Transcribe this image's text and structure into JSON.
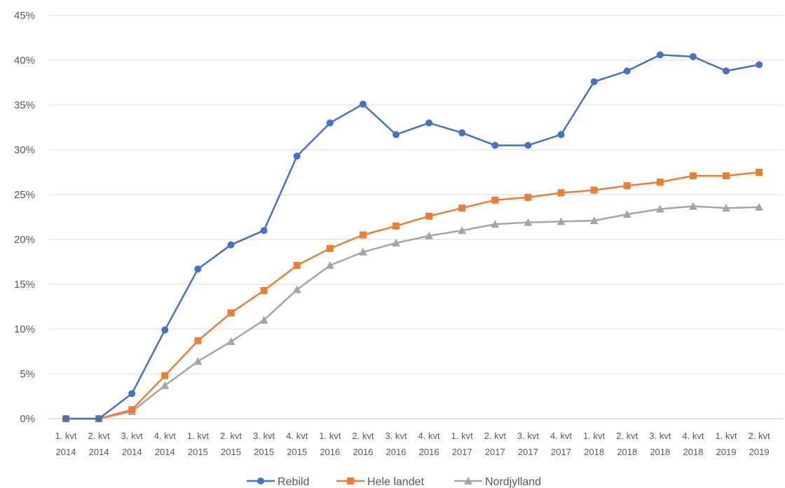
{
  "chart_data": {
    "type": "line",
    "title": "",
    "xlabel": "",
    "ylabel": "",
    "ylim": [
      0,
      45
    ],
    "y_ticks": [
      "0%",
      "5%",
      "10%",
      "15%",
      "20%",
      "25%",
      "30%",
      "35%",
      "40%",
      "45%"
    ],
    "grid": "horizontal",
    "legend_position": "bottom",
    "categories": [
      [
        "1. kvt",
        "2014"
      ],
      [
        "2. kvt",
        "2014"
      ],
      [
        "3. kvt",
        "2014"
      ],
      [
        "4. kvt",
        "2014"
      ],
      [
        "1. kvt",
        "2015"
      ],
      [
        "2. kvt",
        "2015"
      ],
      [
        "3. kvt",
        "2015"
      ],
      [
        "4. kvt",
        "2015"
      ],
      [
        "1. kvt",
        "2016"
      ],
      [
        "2. kvt",
        "2016"
      ],
      [
        "3. kvt",
        "2016"
      ],
      [
        "4. kvt",
        "2016"
      ],
      [
        "1. kvt",
        "2017"
      ],
      [
        "2. kvt",
        "2017"
      ],
      [
        "3. kvt",
        "2017"
      ],
      [
        "4. kvt",
        "2017"
      ],
      [
        "1. kvt",
        "2018"
      ],
      [
        "2. kvt",
        "2018"
      ],
      [
        "3. kvt",
        "2018"
      ],
      [
        "4. kvt",
        "2018"
      ],
      [
        "1. kvt",
        "2019"
      ],
      [
        "2. kvt",
        "2019"
      ]
    ],
    "series": [
      {
        "name": "Rebild",
        "color": "#4472c4",
        "marker": "circle",
        "values": [
          0,
          0,
          2.8,
          9.9,
          16.7,
          19.4,
          21.0,
          29.3,
          33.0,
          35.1,
          31.7,
          33.0,
          31.9,
          30.5,
          30.5,
          31.7,
          37.6,
          38.8,
          40.6,
          40.4,
          38.8,
          39.5
        ]
      },
      {
        "name": "Hele landet",
        "color": "#ed7d31",
        "marker": "square",
        "values": [
          0,
          0,
          1.0,
          4.8,
          8.7,
          11.8,
          14.3,
          17.1,
          19.0,
          20.5,
          21.5,
          22.6,
          23.5,
          24.4,
          24.7,
          25.2,
          25.5,
          26.0,
          26.4,
          27.1,
          27.1,
          27.5
        ]
      },
      {
        "name": "Nordjylland",
        "color": "#a5a5a5",
        "marker": "triangle",
        "values": [
          0,
          0,
          0.8,
          3.7,
          6.4,
          8.6,
          11.0,
          14.4,
          17.1,
          18.6,
          19.6,
          20.4,
          21.0,
          21.7,
          21.9,
          22.0,
          22.1,
          22.8,
          23.4,
          23.7,
          23.5,
          23.6
        ]
      }
    ]
  }
}
